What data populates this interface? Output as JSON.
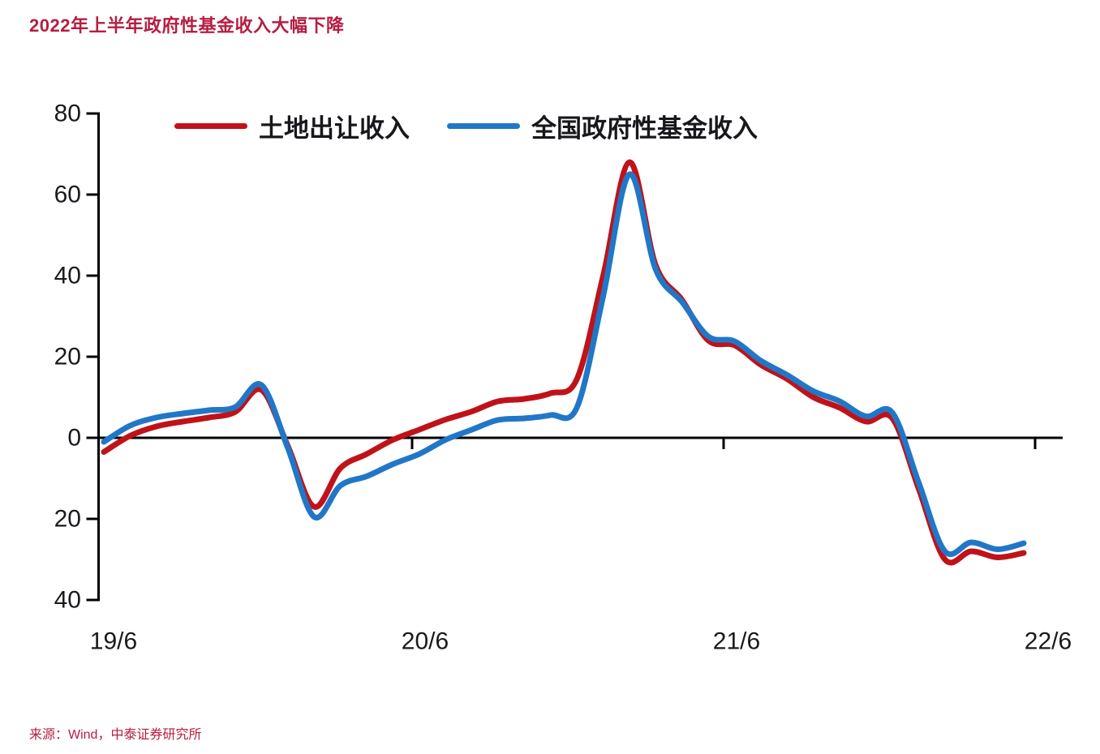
{
  "title": "2022年上半年政府性基金收入大幅下降",
  "source": "来源：Wind，中泰证券研究所",
  "colors": {
    "accent": "#b51e41",
    "line_red": "#c01219",
    "line_blue": "#2177c7",
    "axis": "#000000",
    "tick_text": "#1a1a1e"
  },
  "legend": {
    "items": [
      {
        "label": "土地出让收入",
        "color": "#c01219"
      },
      {
        "label": "全国政府性基金收入",
        "color": "#2177c7"
      }
    ]
  },
  "chart_data": {
    "type": "line",
    "unit": "%",
    "grid": false,
    "legend_position": "top",
    "ylim": [
      -40,
      80
    ],
    "y_tick_values": [
      80,
      60,
      40,
      20,
      0,
      -20,
      -40
    ],
    "y_tick_labels": [
      "80",
      "60",
      "40",
      "20",
      "0",
      "20",
      "40"
    ],
    "x_tick_labels": [
      "19/6",
      "20/6",
      "21/6",
      "22/6"
    ],
    "x_tick_month_index": [
      0,
      12,
      24,
      36
    ],
    "x": [
      "19/6",
      "19/7",
      "19/8",
      "19/9",
      "19/10",
      "19/11",
      "19/12",
      "20/1",
      "20/2",
      "20/3",
      "20/4",
      "20/5",
      "20/6",
      "20/7",
      "20/8",
      "20/9",
      "20/10",
      "20/11",
      "20/12",
      "21/1",
      "21/2",
      "21/3",
      "21/4",
      "21/5",
      "21/6",
      "21/7",
      "21/8",
      "21/9",
      "21/10",
      "21/11",
      "21/12",
      "22/1",
      "22/2",
      "22/3",
      "22/4",
      "22/5"
    ],
    "series": [
      {
        "name": "土地出让收入",
        "color": "#c01219",
        "values": [
          -3.5,
          0.5,
          2.8,
          4.0,
          5.0,
          6.4,
          11.8,
          -2.0,
          -17.0,
          -7.5,
          -4.0,
          -0.5,
          2.0,
          4.5,
          6.5,
          9.0,
          9.6,
          11.0,
          14.5,
          40.0,
          68.0,
          42.5,
          34.0,
          24.0,
          22.8,
          18.0,
          14.5,
          10.0,
          7.4,
          4.0,
          4.8,
          -12.5,
          -30.0,
          -28.0,
          -29.5,
          -28.4
        ]
      },
      {
        "name": "全国政府性基金收入",
        "color": "#2177c7",
        "values": [
          -1.0,
          3.0,
          5.0,
          6.0,
          6.8,
          7.6,
          13.0,
          -2.5,
          -19.5,
          -11.8,
          -9.5,
          -6.5,
          -4.0,
          -0.5,
          2.0,
          4.4,
          4.8,
          5.6,
          7.5,
          35.0,
          65.0,
          41.5,
          33.5,
          25.0,
          23.8,
          19.0,
          15.5,
          11.5,
          9.0,
          5.3,
          6.2,
          -11.0,
          -28.0,
          -25.8,
          -27.5,
          -26.0
        ]
      }
    ]
  }
}
